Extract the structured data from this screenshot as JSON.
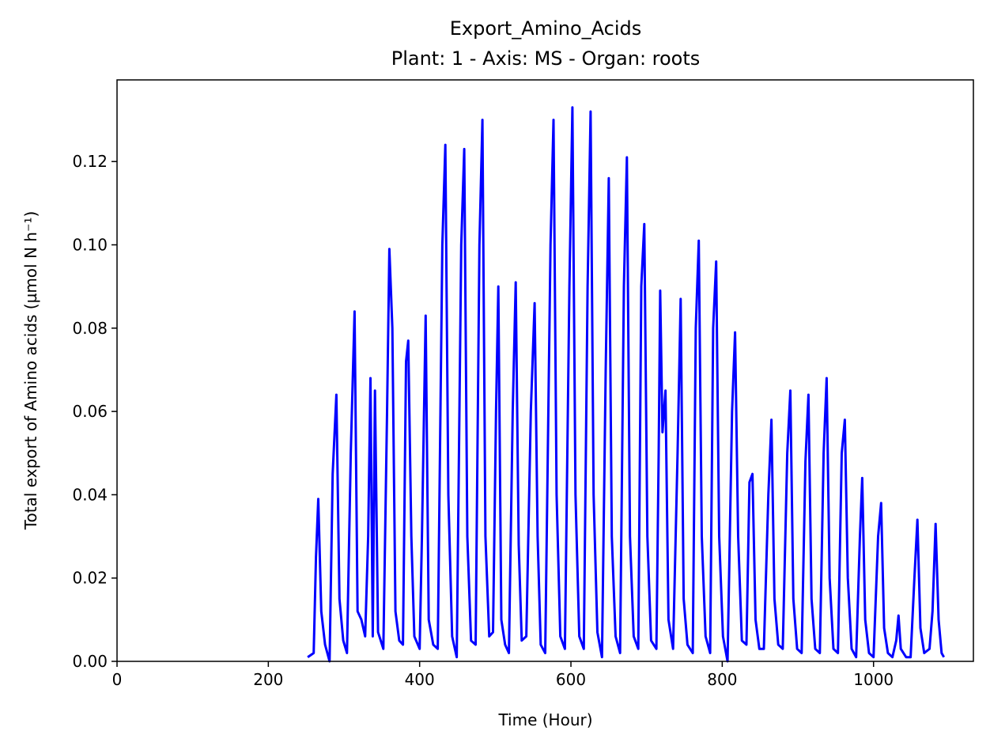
{
  "chart_data": {
    "type": "line",
    "title": "Export_Amino_Acids",
    "subtitle": "Plant: 1 - Axis: MS - Organ: roots",
    "x_label": "Time (Hour)",
    "y_label": "Total export of Amino acids (µmol N h⁻¹)",
    "xlim": [
      0,
      1132
    ],
    "ylim": [
      0,
      0.1396
    ],
    "xticks": [
      0,
      200,
      400,
      600,
      800,
      1000
    ],
    "yticks": [
      {
        "value": 0,
        "label": "0.00"
      },
      {
        "value": 0.02,
        "label": "0.02"
      },
      {
        "value": 0.04,
        "label": "0.04"
      },
      {
        "value": 0.06,
        "label": "0.06"
      },
      {
        "value": 0.08,
        "label": "0.08"
      },
      {
        "value": 0.1,
        "label": "0.10"
      },
      {
        "value": 0.12,
        "label": "0.12"
      }
    ],
    "series": [
      {
        "color": "#0000ff",
        "x": [
          252,
          260,
          263,
          266,
          270,
          275,
          281,
          285,
          290,
          294,
          299,
          304,
          309,
          314,
          318,
          323,
          328,
          332,
          335,
          338,
          341,
          345,
          352,
          357,
          360,
          364,
          368,
          373,
          378,
          382,
          385,
          389,
          393,
          400,
          403,
          408,
          412,
          418,
          424,
          430,
          434,
          438,
          443,
          449,
          455,
          459,
          463,
          468,
          474,
          479,
          483,
          487,
          492,
          497,
          501,
          504,
          508,
          513,
          518,
          523,
          527,
          531,
          535,
          541,
          547,
          552,
          556,
          560,
          566,
          573,
          577,
          581,
          586,
          592,
          598,
          602,
          606,
          611,
          617,
          622,
          626,
          630,
          635,
          641,
          646,
          650,
          654,
          659,
          665,
          670,
          674,
          678,
          683,
          689,
          693,
          697,
          701,
          706,
          713,
          716,
          718,
          721,
          725,
          729,
          735,
          741,
          745,
          749,
          754,
          761,
          765,
          769,
          773,
          778,
          784,
          788,
          792,
          796,
          801,
          807,
          813,
          817,
          821,
          826,
          832,
          836,
          840,
          844,
          849,
          855,
          861,
          865,
          869,
          874,
          880,
          886,
          890,
          894,
          899,
          905,
          910,
          914,
          918,
          923,
          929,
          934,
          938,
          942,
          947,
          953,
          958,
          962,
          966,
          971,
          977,
          982,
          985,
          989,
          994,
          1000,
          1006,
          1010,
          1014,
          1019,
          1025,
          1030,
          1033,
          1036,
          1043,
          1049,
          1054,
          1058,
          1062,
          1067,
          1074,
          1078,
          1082,
          1086,
          1090,
          1093
        ],
        "values": [
          0.001,
          0.002,
          0.025,
          0.039,
          0.012,
          0.004,
          0.0,
          0.045,
          0.064,
          0.015,
          0.005,
          0.002,
          0.05,
          0.084,
          0.012,
          0.01,
          0.006,
          0.03,
          0.068,
          0.006,
          0.065,
          0.007,
          0.003,
          0.06,
          0.099,
          0.08,
          0.012,
          0.005,
          0.004,
          0.072,
          0.077,
          0.03,
          0.006,
          0.003,
          0.03,
          0.083,
          0.01,
          0.004,
          0.003,
          0.1,
          0.124,
          0.04,
          0.006,
          0.001,
          0.1,
          0.123,
          0.03,
          0.005,
          0.004,
          0.1,
          0.13,
          0.03,
          0.006,
          0.007,
          0.06,
          0.09,
          0.01,
          0.004,
          0.002,
          0.06,
          0.091,
          0.028,
          0.005,
          0.006,
          0.06,
          0.086,
          0.03,
          0.004,
          0.002,
          0.1,
          0.13,
          0.04,
          0.006,
          0.003,
          0.09,
          0.133,
          0.04,
          0.006,
          0.003,
          0.09,
          0.132,
          0.04,
          0.007,
          0.001,
          0.07,
          0.116,
          0.03,
          0.006,
          0.002,
          0.09,
          0.121,
          0.03,
          0.006,
          0.003,
          0.09,
          0.105,
          0.03,
          0.005,
          0.003,
          0.05,
          0.089,
          0.055,
          0.065,
          0.01,
          0.003,
          0.05,
          0.087,
          0.015,
          0.004,
          0.002,
          0.08,
          0.101,
          0.03,
          0.006,
          0.002,
          0.08,
          0.096,
          0.03,
          0.006,
          0.0,
          0.06,
          0.079,
          0.03,
          0.005,
          0.004,
          0.043,
          0.045,
          0.01,
          0.003,
          0.003,
          0.04,
          0.058,
          0.015,
          0.004,
          0.003,
          0.05,
          0.065,
          0.015,
          0.003,
          0.002,
          0.048,
          0.064,
          0.015,
          0.003,
          0.002,
          0.05,
          0.068,
          0.02,
          0.003,
          0.002,
          0.05,
          0.058,
          0.02,
          0.003,
          0.001,
          0.03,
          0.044,
          0.01,
          0.002,
          0.001,
          0.03,
          0.038,
          0.008,
          0.002,
          0.001,
          0.005,
          0.011,
          0.003,
          0.001,
          0.001,
          0.02,
          0.034,
          0.008,
          0.002,
          0.003,
          0.012,
          0.033,
          0.01,
          0.002,
          0.001
        ]
      }
    ]
  }
}
